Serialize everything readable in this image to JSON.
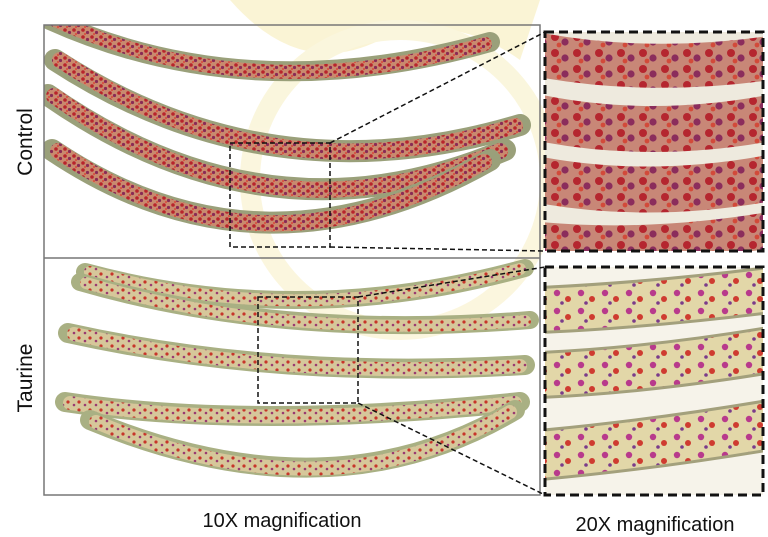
{
  "labels": {
    "control": "Control",
    "taurine": "Taurine"
  },
  "captions": {
    "low": "10X magnification",
    "high": "20X magnification"
  }
}
